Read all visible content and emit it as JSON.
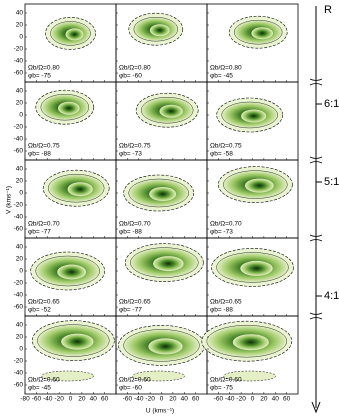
{
  "axes": {
    "x_label": "U (kms⁻¹)",
    "y_label": "V (kms⁻¹)",
    "x_range": [
      -80,
      80
    ],
    "y_range": [
      -75,
      55
    ],
    "x_ticks": [
      -80,
      -60,
      -40,
      -20,
      0,
      20,
      40,
      60
    ],
    "y_ticks": [
      40,
      20,
      0,
      -20,
      -40,
      -60
    ]
  },
  "resonance_axis": {
    "label": "R",
    "marks": [
      "6:1",
      "5:1",
      "4:1"
    ]
  },
  "panels": [
    [
      {
        "omega": "Ωb/Ω=0.80",
        "phi": "φb= -75"
      },
      {
        "omega": "Ωb/Ω=0.80",
        "phi": "φb= -60"
      },
      {
        "omega": "Ωb/Ω=0.80",
        "phi": "φb= -45"
      }
    ],
    [
      {
        "omega": "Ωb/Ω=0.75",
        "phi": "φb= -88"
      },
      {
        "omega": "Ωb/Ω=0.75",
        "phi": "φb= -73"
      },
      {
        "omega": "Ωb/Ω=0.75",
        "phi": "φb= -58"
      }
    ],
    [
      {
        "omega": "Ωb/Ω=0.70",
        "phi": "φb= -77"
      },
      {
        "omega": "Ωb/Ω=0.70",
        "phi": "φb= -88"
      },
      {
        "omega": "Ωb/Ω=0.70",
        "phi": "φb= -73"
      }
    ],
    [
      {
        "omega": "Ωb/Ω=0.65",
        "phi": "φb= -52"
      },
      {
        "omega": "Ωb/Ω=0.65",
        "phi": "φb= -77"
      },
      {
        "omega": "Ωb/Ω=0.65",
        "phi": "φb= -88"
      }
    ],
    [
      {
        "omega": "Ωb/Ω=0.60",
        "phi": "φb= -45"
      },
      {
        "omega": "Ωb/Ω=0.60",
        "phi": "φb= -60"
      },
      {
        "omega": "Ωb/Ω=0.60",
        "phi": "φb= -75"
      }
    ]
  ]
}
